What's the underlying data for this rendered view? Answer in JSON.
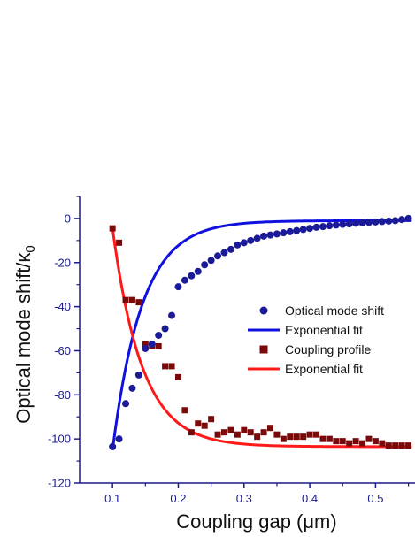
{
  "chart_data": {
    "type": "scatter",
    "title": "",
    "xlabel": "Coupling gap (μm)",
    "ylabel_main": "Optical mode shift/κ",
    "ylabel_sub": "0",
    "xlim": [
      0.05,
      0.56
    ],
    "ylim": [
      -120,
      10
    ],
    "x_ticks": [
      0.1,
      0.2,
      0.3,
      0.4,
      0.5
    ],
    "x_tick_labels": [
      "0.1",
      "0.2",
      "0.3",
      "0.4",
      "0.5"
    ],
    "y_ticks": [
      0,
      -20,
      -40,
      -60,
      -80,
      -100,
      -120
    ],
    "y_tick_labels": [
      "0",
      "-20",
      "-40",
      "-60",
      "-80",
      "-100",
      "-120"
    ],
    "legend_position": "center-right",
    "colors": {
      "axis": "#1a1a8c",
      "mode_shift": "#1b1b9a",
      "mode_fit": "#1010e0",
      "coupling": "#7a0a0a",
      "coupling_fit": "#ff1a1a"
    },
    "series": [
      {
        "name": "Optical mode shift",
        "kind": "points",
        "marker": "circle",
        "x": [
          0.1,
          0.11,
          0.12,
          0.13,
          0.14,
          0.15,
          0.16,
          0.17,
          0.18,
          0.19,
          0.2,
          0.21,
          0.22,
          0.23,
          0.24,
          0.25,
          0.26,
          0.27,
          0.28,
          0.29,
          0.3,
          0.31,
          0.32,
          0.33,
          0.34,
          0.35,
          0.36,
          0.37,
          0.38,
          0.39,
          0.4,
          0.41,
          0.42,
          0.43,
          0.44,
          0.45,
          0.46,
          0.47,
          0.48,
          0.49,
          0.5,
          0.51,
          0.52,
          0.53,
          0.54,
          0.55
        ],
        "y": [
          -103.5,
          -100,
          -84,
          -77,
          -71,
          -59,
          -57,
          -53,
          -50,
          -44,
          -31,
          -28,
          -26,
          -24,
          -21,
          -19,
          -17,
          -15.5,
          -14,
          -12,
          -11,
          -10,
          -9,
          -8,
          -7.5,
          -7,
          -6.5,
          -6,
          -5.5,
          -5,
          -4.5,
          -4,
          -3.7,
          -3.3,
          -3,
          -2.7,
          -2.5,
          -2.2,
          -2,
          -1.8,
          -1.6,
          -1.4,
          -1.2,
          -1,
          -0.5,
          0
        ]
      },
      {
        "name": "Exponential fit",
        "kind": "fit",
        "model": "y = -110*exp(-(x-0.0975)/0.045) - 1",
        "amplitude": -110,
        "x0": 0.0975,
        "decay": 0.045,
        "offset": -1,
        "x_range": [
          0.1,
          0.555
        ]
      },
      {
        "name": "Coupling profile",
        "kind": "points",
        "marker": "square",
        "x": [
          0.1,
          0.11,
          0.12,
          0.13,
          0.14,
          0.15,
          0.16,
          0.17,
          0.18,
          0.19,
          0.2,
          0.21,
          0.22,
          0.23,
          0.24,
          0.25,
          0.26,
          0.27,
          0.28,
          0.29,
          0.3,
          0.31,
          0.32,
          0.33,
          0.34,
          0.35,
          0.36,
          0.37,
          0.38,
          0.39,
          0.4,
          0.41,
          0.42,
          0.43,
          0.44,
          0.45,
          0.46,
          0.47,
          0.48,
          0.49,
          0.5,
          0.51,
          0.52,
          0.53,
          0.54,
          0.55
        ],
        "y": [
          -4.5,
          -11,
          -37,
          -37,
          -38,
          -57,
          -58,
          -58,
          -67,
          -67,
          -72,
          -87,
          -97,
          -93,
          -94,
          -91,
          -98,
          -97,
          -96,
          -98,
          -96,
          -97,
          -99,
          -97,
          -95,
          -98,
          -100,
          -99,
          -99,
          -99,
          -98,
          -98,
          -100,
          -100,
          -101,
          -101,
          -102,
          -101,
          -102,
          -100,
          -101,
          -102,
          -103,
          -103,
          -103,
          -103
        ]
      },
      {
        "name": "Exponential fit",
        "kind": "fit",
        "model": "y = 99*exp(-(x-0.1)/0.045) - 103.5",
        "amplitude": 99,
        "x0": 0.1,
        "decay": 0.045,
        "offset": -103.5,
        "x_range": [
          0.1,
          0.555
        ]
      }
    ]
  }
}
